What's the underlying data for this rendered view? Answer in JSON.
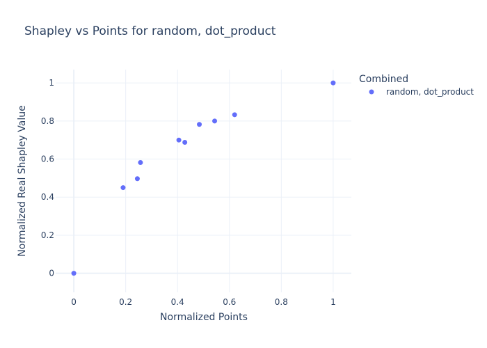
{
  "chart_data": {
    "type": "scatter",
    "title": "Shapley vs Points for random, dot_product",
    "xlabel": "Normalized Points",
    "ylabel": "Normalized Real Shapley Value",
    "xlim": [
      -0.07,
      1.07
    ],
    "ylim": [
      -0.1,
      1.07
    ],
    "xticks": [
      0,
      0.2,
      0.4,
      0.6,
      0.8,
      1
    ],
    "xtick_labels": [
      "0",
      "0.2",
      "0.4",
      "0.6",
      "0.8",
      "1"
    ],
    "yticks": [
      0,
      0.2,
      0.4,
      0.6,
      0.8,
      1
    ],
    "ytick_labels": [
      "0",
      "0.2",
      "0.4",
      "0.6",
      "0.8",
      "1"
    ],
    "grid": true,
    "legend": {
      "title": "Combined",
      "placement": "top-right"
    },
    "series": [
      {
        "name": "random, dot_product",
        "color": "#636efa",
        "x": [
          0,
          0.19,
          0.245,
          0.257,
          0.405,
          0.428,
          0.484,
          0.543,
          0.62,
          1
        ],
        "y": [
          0,
          0.45,
          0.497,
          0.582,
          0.7,
          0.688,
          0.782,
          0.8,
          0.833,
          1
        ]
      }
    ]
  }
}
